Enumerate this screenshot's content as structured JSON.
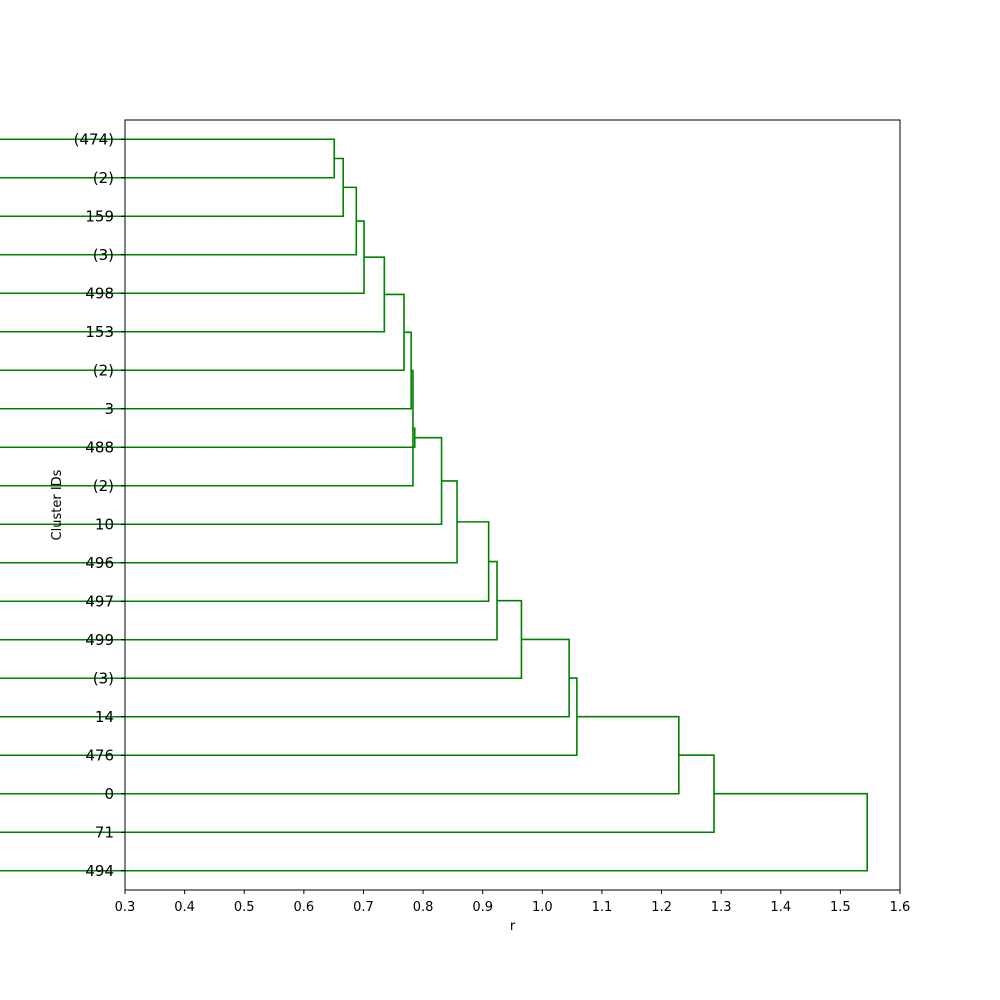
{
  "chart_data": {
    "type": "dendrogram",
    "orientation": "horizontal",
    "title": "",
    "xlabel": "r",
    "ylabel": "Cluster IDs",
    "xlim": [
      0.3,
      1.6
    ],
    "xticks": [
      "0.3",
      "0.4",
      "0.5",
      "0.6",
      "0.7",
      "0.8",
      "0.9",
      "1.0",
      "1.1",
      "1.2",
      "1.3",
      "1.4",
      "1.5",
      "1.6"
    ],
    "leaves": [
      "(474)",
      "(2)",
      "159",
      "(3)",
      "498",
      "153",
      "(2)",
      "3",
      "488",
      "(2)",
      "10",
      "496",
      "497",
      "499",
      "(3)",
      "14",
      "476",
      "0",
      "71",
      "494"
    ],
    "merges": [
      {
        "a": 0,
        "b": 1,
        "distance": 0.651
      },
      {
        "a": "m0",
        "b": 2,
        "distance": 0.666
      },
      {
        "a": "m1",
        "b": 3,
        "distance": 0.688
      },
      {
        "a": "m2",
        "b": 4,
        "distance": 0.701
      },
      {
        "a": "m3",
        "b": 5,
        "distance": 0.735
      },
      {
        "a": "m4",
        "b": 6,
        "distance": 0.768
      },
      {
        "a": "m5",
        "b": 7,
        "distance": 0.78
      },
      {
        "a": "m6",
        "b": 9,
        "distance": 0.783
      },
      {
        "a": "m7",
        "b": 8,
        "distance": 0.786
      },
      {
        "a": "m8",
        "b": 10,
        "distance": 0.831
      },
      {
        "a": "m9",
        "b": 11,
        "distance": 0.857
      },
      {
        "a": "m10",
        "b": 12,
        "distance": 0.91
      },
      {
        "a": "m11",
        "b": 13,
        "distance": 0.924
      },
      {
        "a": "m12",
        "b": 14,
        "distance": 0.965
      },
      {
        "a": "m13",
        "b": 15,
        "distance": 1.045
      },
      {
        "a": "m14",
        "b": 16,
        "distance": 1.058
      },
      {
        "a": "m15",
        "b": 17,
        "distance": 1.229
      },
      {
        "a": "m16",
        "b": 18,
        "distance": 1.288
      },
      {
        "a": "m17",
        "b": 19,
        "distance": 1.545
      }
    ],
    "line_color": "#008000",
    "grid": false
  }
}
